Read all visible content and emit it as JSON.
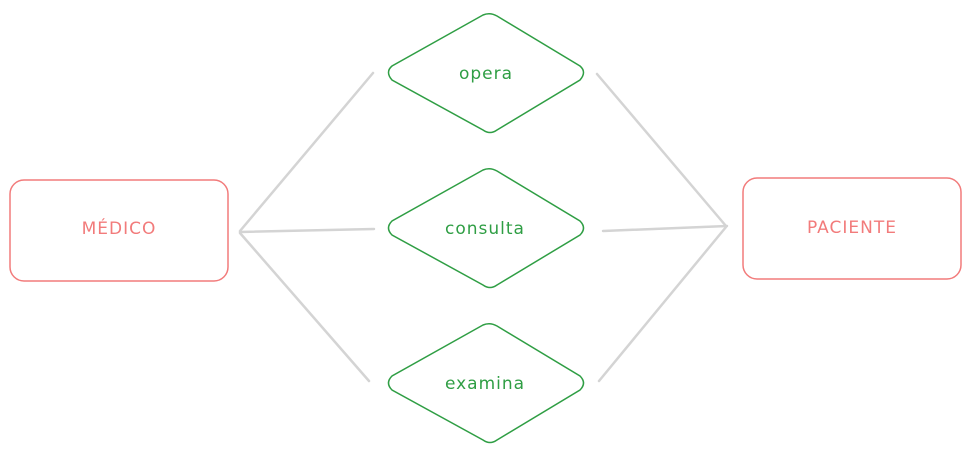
{
  "colors": {
    "entity": "#f27b7b",
    "relationship": "#2f9e44",
    "connector": "#d4d4d4",
    "background": "#ffffff"
  },
  "entities": {
    "left": {
      "label": "MÉDICO"
    },
    "right": {
      "label": "PACIENTE"
    }
  },
  "relationships": [
    {
      "label": "opera"
    },
    {
      "label": "consulta"
    },
    {
      "label": "examina"
    }
  ]
}
